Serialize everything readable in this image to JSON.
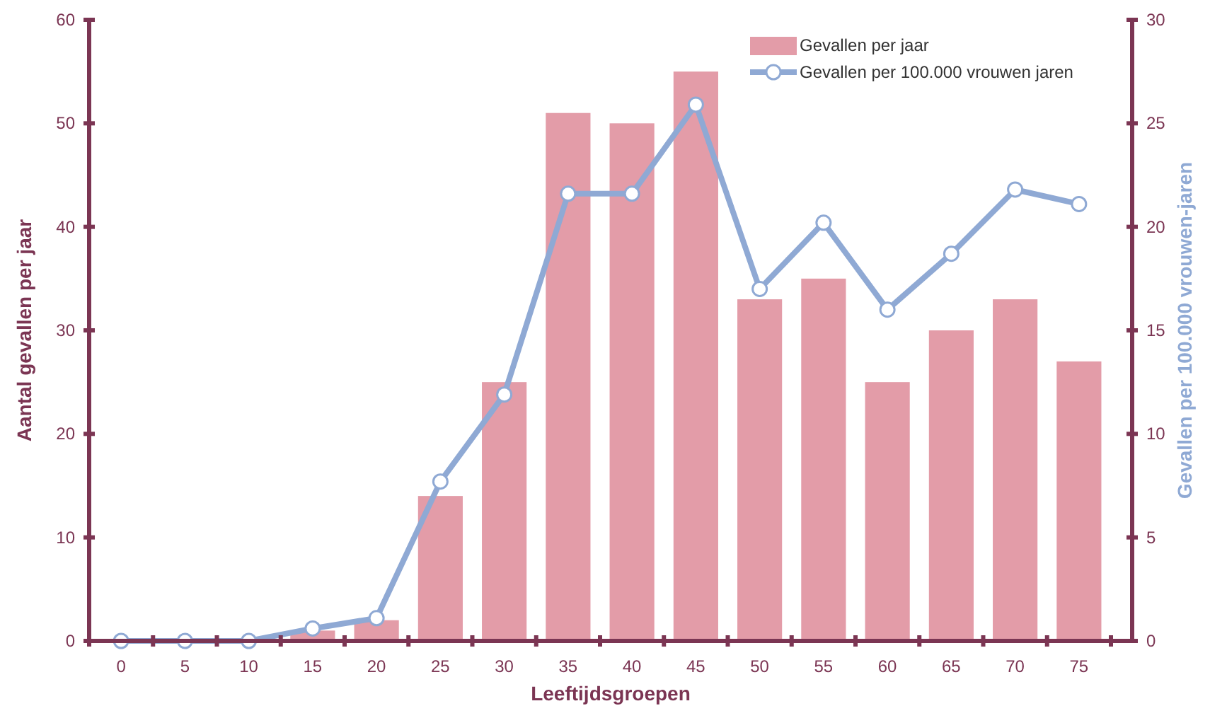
{
  "chart_data": {
    "type": "bar",
    "categories": [
      "0",
      "5",
      "10",
      "15",
      "20",
      "25",
      "30",
      "35",
      "40",
      "45",
      "50",
      "55",
      "60",
      "65",
      "70",
      "75"
    ],
    "xlabel": "Leeftijdsgroepen",
    "ylabel": "Aantal gevallen per jaar",
    "y2label": "Gevallen per 100.000 vrouwen-jaren",
    "ylim": [
      0,
      60
    ],
    "yticks": [
      0,
      10,
      20,
      30,
      40,
      50,
      60
    ],
    "y2lim": [
      0,
      30
    ],
    "y2ticks": [
      0,
      5,
      10,
      15,
      20,
      25,
      30
    ],
    "legend": "top right",
    "grid": false,
    "series": [
      {
        "name": "Gevallen per jaar",
        "color": "#e39ca8",
        "values": [
          0,
          0,
          0,
          1,
          2,
          14,
          25,
          51,
          50,
          55,
          33,
          35,
          25,
          30,
          33,
          27
        ]
      },
      {
        "name": "Gevallen per 100.000 vrouwen jaren",
        "type": "line",
        "axis": "y2",
        "color": "#8fa9d4",
        "marker": "circle",
        "values": [
          0,
          0,
          0,
          0.6,
          1.1,
          7.7,
          11.9,
          21.6,
          21.6,
          25.9,
          17,
          20.2,
          16,
          18.7,
          21.8,
          21.1
        ]
      }
    ]
  }
}
